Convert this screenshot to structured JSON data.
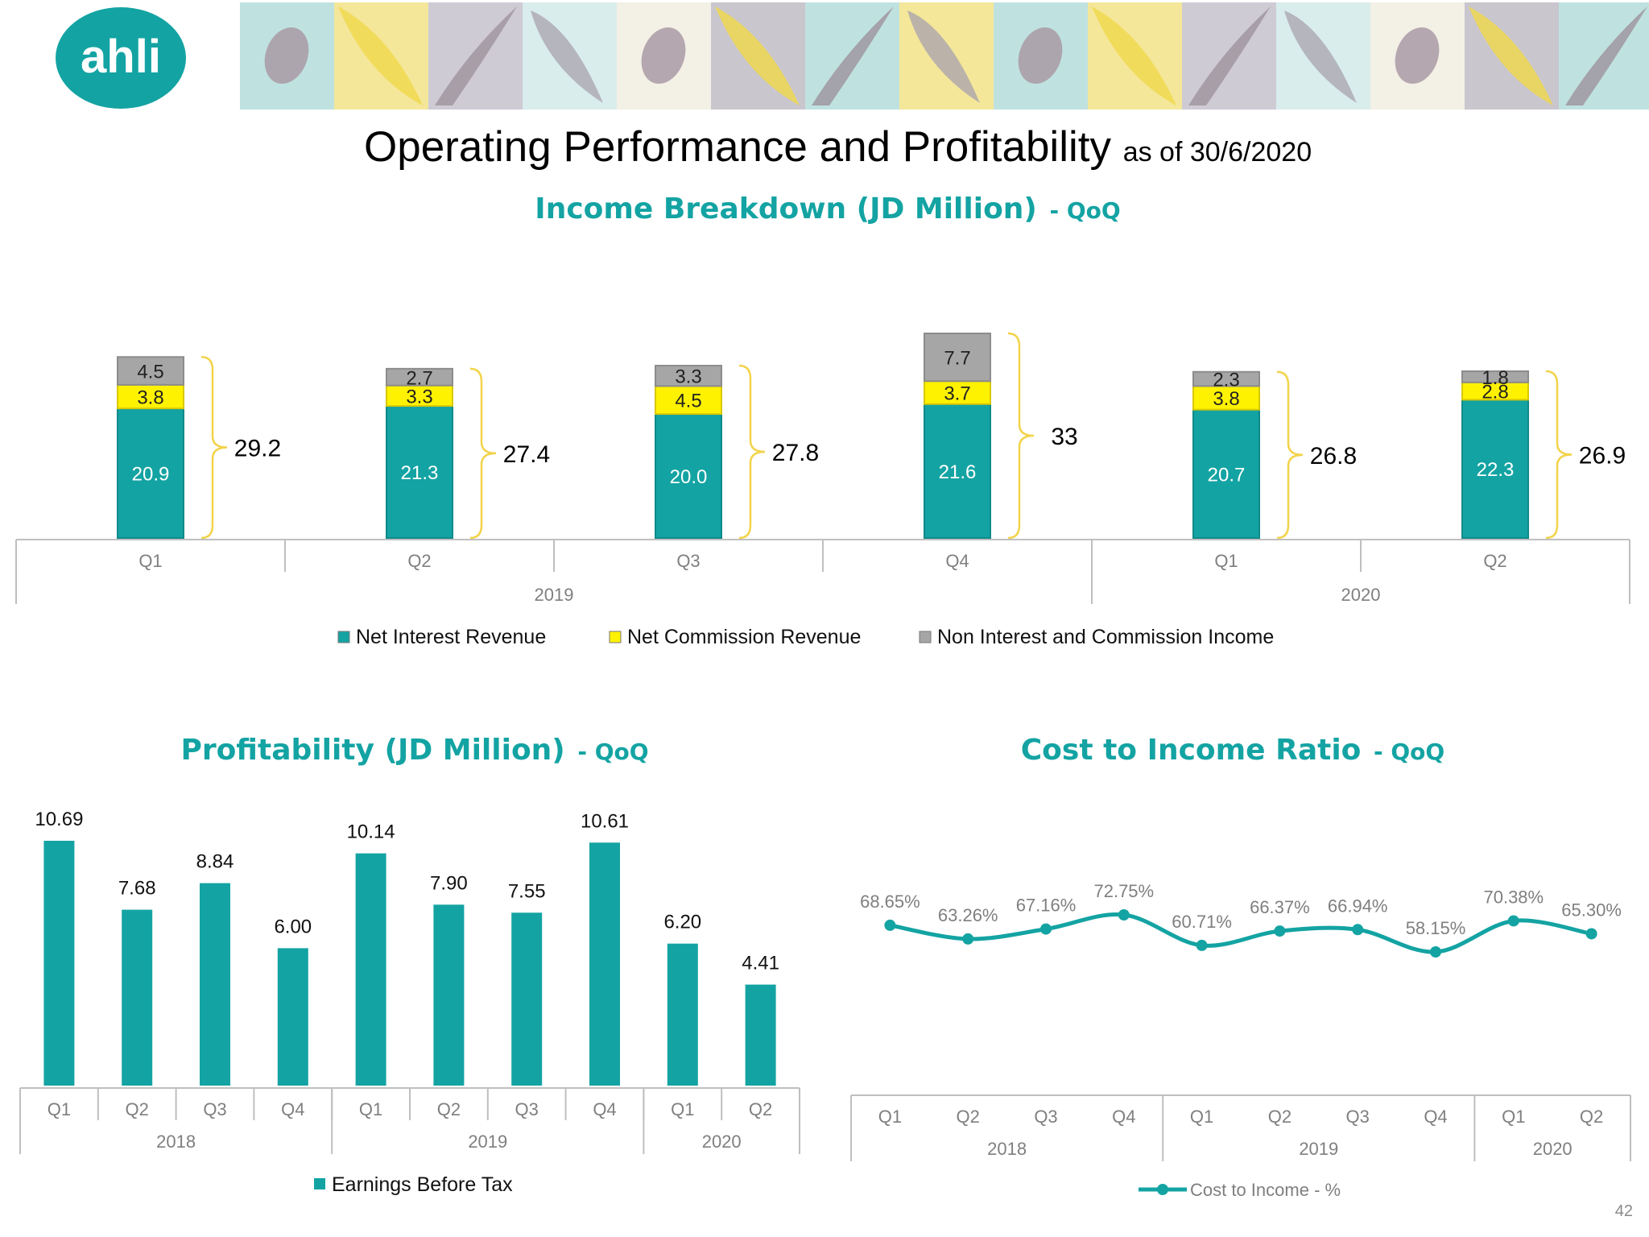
{
  "header": {
    "logo_text": "ahli",
    "title": "Operating Performance and Profitability",
    "subtitle": "as of 30/6/2020"
  },
  "colors": {
    "teal": "#14A3A3",
    "yellow": "#FFF200",
    "gray": "#A6A6A6",
    "brace": "#F2D34A",
    "axis": "#BFBFBF",
    "label_gray": "#7F7F7F"
  },
  "page_number": "42",
  "chart_data": [
    {
      "id": "income",
      "type": "bar",
      "stacked": true,
      "title": "Income Breakdown (JD Million)",
      "title_suffix": "- QoQ",
      "categories": [
        "Q1",
        "Q2",
        "Q3",
        "Q4",
        "Q1",
        "Q2"
      ],
      "groups": [
        {
          "label": "2019",
          "span": 4
        },
        {
          "label": "2020",
          "span": 2
        }
      ],
      "series": [
        {
          "name": "Net Interest Revenue",
          "color": "#14A3A3",
          "labels": [
            "20.9",
            "21.3",
            "20.0",
            "21.6",
            "20.7",
            "22.3"
          ],
          "values": [
            20.9,
            21.3,
            20.0,
            21.6,
            20.7,
            22.3
          ]
        },
        {
          "name": "Net Commission Revenue",
          "color": "#FFF200",
          "labels": [
            "3.8",
            "3.3",
            "4.5",
            "3.7",
            "3.8",
            "2.8"
          ],
          "values": [
            3.8,
            3.3,
            4.5,
            3.7,
            3.8,
            2.8
          ]
        },
        {
          "name": "Non Interest and Commission Income",
          "color": "#A6A6A6",
          "labels": [
            "4.5",
            "2.7",
            "3.3",
            "7.7",
            "2.3",
            "1.8"
          ],
          "values": [
            4.5,
            2.7,
            3.3,
            7.7,
            2.3,
            1.8
          ]
        }
      ],
      "totals": [
        "29.2",
        "27.4",
        "27.8",
        "33",
        "26.8",
        "26.9"
      ],
      "ylim": [
        0,
        33
      ],
      "legend_position": "bottom"
    },
    {
      "id": "profit",
      "type": "bar",
      "title": "Profitability (JD Million)",
      "title_suffix": "- QoQ",
      "categories": [
        "Q1",
        "Q2",
        "Q3",
        "Q4",
        "Q1",
        "Q2",
        "Q3",
        "Q4",
        "Q1",
        "Q2"
      ],
      "groups": [
        {
          "label": "2018",
          "span": 4
        },
        {
          "label": "2019",
          "span": 4
        },
        {
          "label": "2020",
          "span": 2
        }
      ],
      "series": [
        {
          "name": "Earnings Before Tax",
          "color": "#14A3A3",
          "values": [
            10.69,
            7.68,
            8.84,
            6.0,
            10.14,
            7.9,
            7.55,
            10.61,
            6.2,
            4.41
          ],
          "labels": [
            "10.69",
            "7.68",
            "8.84",
            "6.00",
            "10.14",
            "7.90",
            "7.55",
            "10.61",
            "6.20",
            "4.41"
          ]
        }
      ],
      "ylim": [
        0,
        12
      ],
      "legend_position": "bottom"
    },
    {
      "id": "ratio",
      "type": "line",
      "title": "Cost to Income Ratio",
      "title_suffix": "- QoQ",
      "categories": [
        "Q1",
        "Q2",
        "Q3",
        "Q4",
        "Q1",
        "Q2",
        "Q3",
        "Q4",
        "Q1",
        "Q2"
      ],
      "groups": [
        {
          "label": "2018",
          "span": 4
        },
        {
          "label": "2019",
          "span": 4
        },
        {
          "label": "2020",
          "span": 2
        }
      ],
      "series": [
        {
          "name": "Cost to Income - %",
          "color": "#14A3A3",
          "values": [
            68.65,
            63.26,
            67.16,
            72.75,
            60.71,
            66.37,
            66.94,
            58.15,
            70.38,
            65.3
          ],
          "labels": [
            "68.65%",
            "63.26%",
            "67.16%",
            "72.75%",
            "60.71%",
            "66.37%",
            "66.94%",
            "58.15%",
            "70.38%",
            "65.30%"
          ]
        }
      ],
      "legend_position": "bottom"
    }
  ]
}
